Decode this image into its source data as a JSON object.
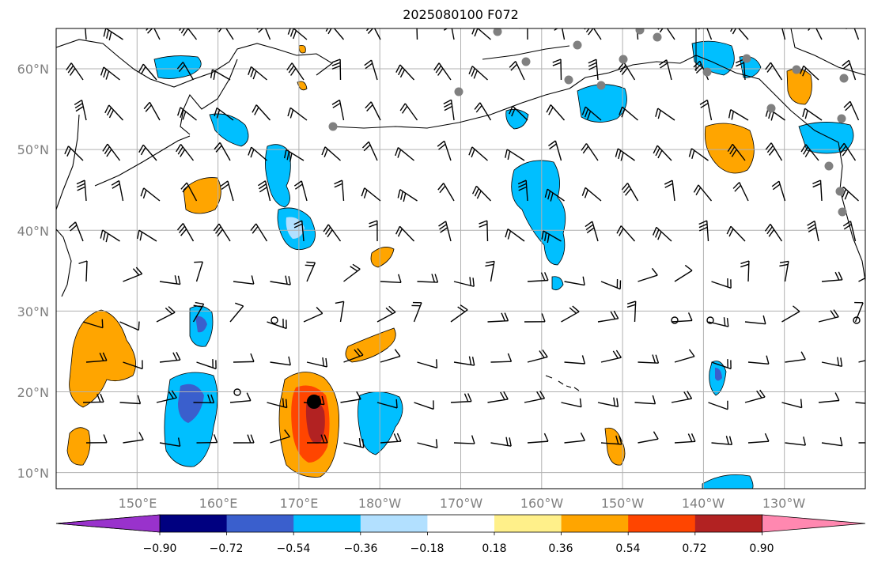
{
  "title": "2025080100 F072",
  "map": {
    "lat_labels": [
      "60°N",
      "50°N",
      "40°N",
      "30°N",
      "20°N",
      "10°N"
    ],
    "lon_labels": [
      "150°E",
      "160°E",
      "170°E",
      "180°W",
      "170°W",
      "160°W",
      "150°W",
      "140°W",
      "130°W"
    ],
    "lat_range": [
      8,
      65
    ],
    "lon_range": [
      140,
      240
    ],
    "gridlines": true
  },
  "colorbar": {
    "ticks": [
      "−0.90",
      "−0.72",
      "−0.54",
      "−0.36",
      "−0.18",
      "0.18",
      "0.36",
      "0.54",
      "0.72",
      "0.90"
    ],
    "colors": {
      "under": "#9932cc",
      "bins": [
        "#000080",
        "#3a5fcd",
        "#00bfff",
        "#b2e0ff",
        "#ffffff",
        "#fff08a",
        "#ffa500",
        "#ff4500",
        "#b22222"
      ],
      "over": "#ff88b0"
    }
  },
  "colors": {
    "gridline": "#b0b0b0",
    "tick_label": "#808080",
    "coast": "#000000",
    "station_gray": "#808080"
  }
}
